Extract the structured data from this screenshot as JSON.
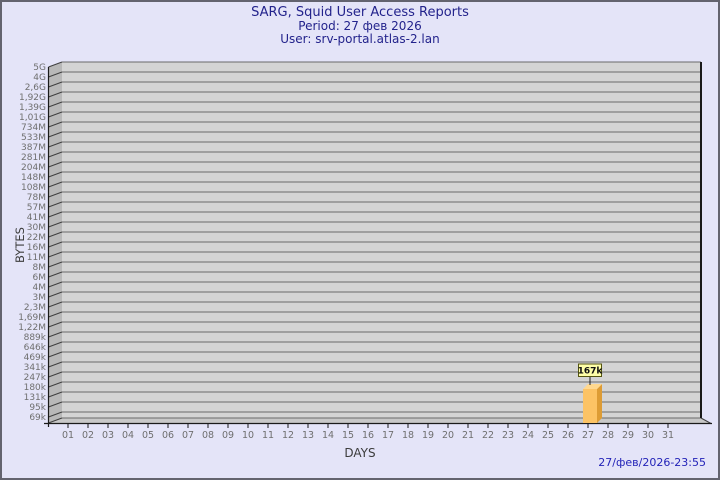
{
  "header": {
    "title": "SARG, Squid User Access Reports",
    "period": "Period: 27 фев 2026",
    "user": "User: srv-portal.atlas-2.lan"
  },
  "footer": {
    "timestamp": "27/фев/2026-23:55"
  },
  "chart_data": {
    "type": "bar",
    "title": "SARG, Squid User Access Reports",
    "subtitle_period": "Period: 27 фев 2026",
    "subtitle_user": "User: srv-portal.atlas-2.lan",
    "xlabel": "DAYS",
    "ylabel": "BYTES",
    "x_categories": [
      "01",
      "02",
      "03",
      "04",
      "05",
      "06",
      "07",
      "08",
      "09",
      "10",
      "11",
      "12",
      "13",
      "14",
      "15",
      "16",
      "17",
      "18",
      "19",
      "20",
      "21",
      "22",
      "23",
      "24",
      "25",
      "26",
      "27",
      "28",
      "29",
      "30",
      "31"
    ],
    "y_tick_labels": [
      "5G",
      "4G",
      "2,6G",
      "1,92G",
      "1,39G",
      "1,01G",
      "734M",
      "533M",
      "387M",
      "281M",
      "204M",
      "148M",
      "108M",
      "78M",
      "57M",
      "41M",
      "30M",
      "22M",
      "16M",
      "11M",
      "8M",
      "6M",
      "4M",
      "3M",
      "2,3M",
      "1,69M",
      "1,22M",
      "889k",
      "646k",
      "469k",
      "341k",
      "247k",
      "180k",
      "131k",
      "95k",
      "69k"
    ],
    "y_scale": "geometric, ticks top-to-bottom, bottom tick 69k",
    "grid": "horizontal lines at every y tick",
    "legend": "none",
    "series": [
      {
        "name": "bytes-per-day",
        "points": [
          {
            "x": "27",
            "value_bytes": 167000,
            "value_label": "167k"
          }
        ]
      }
    ],
    "colors": {
      "background": "#e4e4f8",
      "plot_bg": "#d4d4d4",
      "side_wall": "#b8b8b8",
      "floor": "#c8c8c8",
      "gridline": "#6a6a6a",
      "axis": "#1a1a1a",
      "tick_label": "#6f6f6f",
      "axis_title": "#3c3c3c",
      "title_text": "#23238c",
      "timestamp_text": "#2323b8",
      "bar_front": "#fcc365",
      "bar_side": "#dd9c35",
      "bar_top": "#ffd88f",
      "annotation_bg": "#ffffa8",
      "annotation_border": "#55550f",
      "annotation_text": "#111111"
    }
  }
}
